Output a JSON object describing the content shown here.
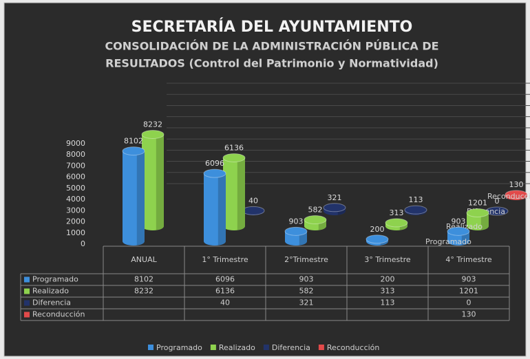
{
  "chart_data": {
    "type": "bar3d",
    "title": "SECRETARÍA DEL AYUNTAMIENTO",
    "subtitle": [
      "CONSOLIDACIÓN DE LA ADMINISTRACIÓN PÚBLICA DE",
      "RESULTADOS (Control del Patrimonio y Normatividad)"
    ],
    "categories": [
      "ANUAL",
      "1° Trimestre",
      "2°Trimestre",
      "3° Trimestre",
      "4° Trimestre"
    ],
    "series": [
      {
        "name": "Programado",
        "color": "#3d8fdc",
        "values": [
          8102,
          6096,
          903,
          200,
          903
        ]
      },
      {
        "name": "Realizado",
        "color": "#8ed24e",
        "values": [
          8232,
          6136,
          582,
          313,
          1201
        ]
      },
      {
        "name": "Diferencia",
        "color": "#22336a",
        "values": [
          null,
          40,
          321,
          113,
          0
        ]
      },
      {
        "name": "Reconducción",
        "color": "#e24a4a",
        "values": [
          null,
          null,
          null,
          null,
          130
        ]
      }
    ],
    "ylim": [
      0,
      9000
    ],
    "yticks": [
      0,
      1000,
      2000,
      3000,
      4000,
      5000,
      6000,
      7000,
      8000,
      9000
    ],
    "grid": true,
    "legend": "bottom"
  }
}
